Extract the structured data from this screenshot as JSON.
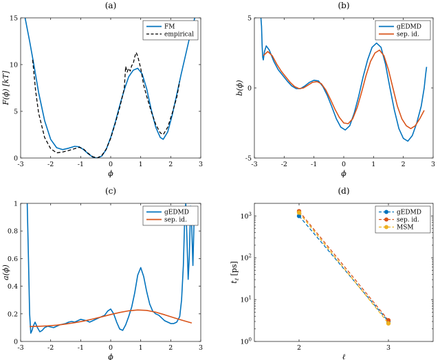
{
  "colors": {
    "blue": "#0072BD",
    "orange": "#D95319",
    "yellow": "#EDB120",
    "black": "#000000"
  },
  "chart_data": [
    {
      "id": "a",
      "type": "line",
      "title": "(a)",
      "xlabel": "ϕ",
      "ylabel": "F(ϕ) [kT]",
      "xlim": [
        -3,
        3
      ],
      "ylim": [
        0,
        15
      ],
      "x_ticks": [
        "-3",
        "-2",
        "-1",
        "0",
        "1",
        "2",
        "3"
      ],
      "y_ticks": [
        "0",
        "5",
        "10",
        "15"
      ],
      "legend_position": "top-right",
      "series": [
        {
          "name": "FM",
          "color": "#0072BD",
          "dash": "solid",
          "x": [
            -2.85,
            -2.7,
            -2.55,
            -2.4,
            -2.2,
            -2.0,
            -1.8,
            -1.6,
            -1.4,
            -1.2,
            -1.05,
            -0.9,
            -0.75,
            -0.6,
            -0.45,
            -0.3,
            -0.15,
            0.0,
            0.15,
            0.3,
            0.45,
            0.6,
            0.75,
            0.9,
            1.05,
            1.2,
            1.35,
            1.5,
            1.65,
            1.75,
            1.9,
            2.05,
            2.2,
            2.35,
            2.5,
            2.65,
            2.8
          ],
          "y": [
            15.0,
            12.5,
            9.8,
            7.0,
            4.0,
            2.0,
            1.1,
            0.9,
            1.05,
            1.25,
            1.2,
            0.9,
            0.45,
            0.1,
            0.0,
            0.2,
            0.9,
            2.2,
            3.8,
            5.6,
            7.3,
            8.7,
            9.4,
            9.6,
            9.0,
            7.4,
            5.2,
            3.3,
            2.2,
            2.0,
            2.8,
            4.6,
            6.8,
            9.0,
            11.1,
            13.2,
            15.0
          ]
        },
        {
          "name": "empirical",
          "color": "#000000",
          "dash": "dashed",
          "x": [
            -2.6,
            -2.5,
            -2.4,
            -2.2,
            -2.0,
            -1.8,
            -1.6,
            -1.4,
            -1.2,
            -1.05,
            -0.9,
            -0.75,
            -0.6,
            -0.45,
            -0.3,
            -0.15,
            0.0,
            0.15,
            0.3,
            0.45,
            0.5,
            0.55,
            0.6,
            0.65,
            0.7,
            0.75,
            0.8,
            0.85,
            0.9,
            1.0,
            1.1,
            1.2,
            1.35,
            1.5,
            1.65,
            1.75,
            1.9,
            2.05,
            2.2,
            2.3
          ],
          "y": [
            10.5,
            7.2,
            4.8,
            2.2,
            1.0,
            0.55,
            0.65,
            0.8,
            1.0,
            1.15,
            0.95,
            0.5,
            0.15,
            0.0,
            0.25,
            0.95,
            2.1,
            3.7,
            5.4,
            7.4,
            9.8,
            9.2,
            9.6,
            9.3,
            9.9,
            10.1,
            10.8,
            11.3,
            10.9,
            9.6,
            7.8,
            6.6,
            5.0,
            3.6,
            2.7,
            2.5,
            3.3,
            4.8,
            6.5,
            8.2
          ]
        }
      ]
    },
    {
      "id": "b",
      "type": "line",
      "title": "(b)",
      "xlabel": "ϕ",
      "ylabel": "b(ϕ)",
      "xlim": [
        -3,
        3
      ],
      "ylim": [
        -5,
        5
      ],
      "x_ticks": [
        "-3",
        "-2",
        "-1",
        "0",
        "1",
        "2",
        "3"
      ],
      "y_ticks": [
        "-5",
        "0",
        "5"
      ],
      "legend_position": "top-right",
      "series": [
        {
          "name": "gEDMD",
          "color": "#0072BD",
          "dash": "solid",
          "x": [
            -2.78,
            -2.76,
            -2.74,
            -2.72,
            -2.7,
            -2.66,
            -2.6,
            -2.5,
            -2.35,
            -2.2,
            -2.05,
            -1.9,
            -1.75,
            -1.6,
            -1.45,
            -1.3,
            -1.15,
            -1.0,
            -0.85,
            -0.7,
            -0.55,
            -0.4,
            -0.25,
            -0.1,
            0.05,
            0.2,
            0.35,
            0.5,
            0.65,
            0.8,
            0.95,
            1.1,
            1.25,
            1.4,
            1.55,
            1.7,
            1.85,
            2.0,
            2.15,
            2.3,
            2.45,
            2.6,
            2.7,
            2.75,
            2.78
          ],
          "y": [
            5.0,
            4.4,
            3.0,
            2.2,
            2.0,
            2.6,
            3.0,
            2.7,
            1.9,
            1.3,
            0.9,
            0.5,
            0.15,
            -0.05,
            -0.05,
            0.15,
            0.4,
            0.55,
            0.5,
            0.1,
            -0.55,
            -1.35,
            -2.2,
            -2.8,
            -3.0,
            -2.7,
            -1.8,
            -0.6,
            0.8,
            2.0,
            2.9,
            3.2,
            2.9,
            1.7,
            0.0,
            -1.6,
            -2.9,
            -3.6,
            -3.8,
            -3.4,
            -2.5,
            -1.3,
            0.0,
            1.0,
            1.5
          ]
        },
        {
          "name": "sep. id.",
          "color": "#D95319",
          "dash": "solid",
          "x": [
            -2.7,
            -2.55,
            -2.4,
            -2.25,
            -2.1,
            -1.95,
            -1.8,
            -1.65,
            -1.5,
            -1.35,
            -1.2,
            -1.05,
            -0.9,
            -0.75,
            -0.6,
            -0.45,
            -0.3,
            -0.15,
            0.0,
            0.15,
            0.3,
            0.45,
            0.6,
            0.75,
            0.9,
            1.05,
            1.2,
            1.35,
            1.5,
            1.65,
            1.8,
            1.95,
            2.1,
            2.25,
            2.4,
            2.55,
            2.7
          ],
          "y": [
            2.3,
            2.6,
            2.3,
            1.7,
            1.2,
            0.8,
            0.4,
            0.1,
            -0.05,
            0.0,
            0.2,
            0.4,
            0.45,
            0.3,
            -0.15,
            -0.8,
            -1.5,
            -2.1,
            -2.5,
            -2.55,
            -2.2,
            -1.4,
            -0.3,
            0.9,
            1.9,
            2.5,
            2.7,
            2.3,
            1.3,
            0.0,
            -1.3,
            -2.2,
            -2.7,
            -2.9,
            -2.7,
            -2.2,
            -1.6
          ]
        }
      ]
    },
    {
      "id": "c",
      "type": "line",
      "title": "(c)",
      "xlabel": "ϕ",
      "ylabel": "a(ϕ)",
      "xlim": [
        -3,
        3
      ],
      "ylim": [
        0,
        1
      ],
      "x_ticks": [
        "-3",
        "-2",
        "-1",
        "0",
        "1",
        "2",
        "3"
      ],
      "y_ticks": [
        "0",
        "0.2",
        "0.4",
        "0.6",
        "0.8",
        "1"
      ],
      "legend_position": "top-right",
      "series": [
        {
          "name": "gEDMD",
          "color": "#0072BD",
          "dash": "solid",
          "x": [
            -2.78,
            -2.74,
            -2.7,
            -2.66,
            -2.62,
            -2.58,
            -2.52,
            -2.44,
            -2.36,
            -2.28,
            -2.2,
            -2.1,
            -2.0,
            -1.9,
            -1.8,
            -1.7,
            -1.6,
            -1.5,
            -1.4,
            -1.3,
            -1.2,
            -1.1,
            -1.0,
            -0.9,
            -0.8,
            -0.7,
            -0.6,
            -0.5,
            -0.4,
            -0.3,
            -0.2,
            -0.1,
            0.0,
            0.1,
            0.2,
            0.3,
            0.4,
            0.5,
            0.6,
            0.7,
            0.8,
            0.9,
            1.0,
            1.1,
            1.2,
            1.3,
            1.4,
            1.5,
            1.6,
            1.7,
            1.8,
            1.9,
            2.0,
            2.1,
            2.2,
            2.3,
            2.36,
            2.42,
            2.46,
            2.5,
            2.54,
            2.58,
            2.62,
            2.66,
            2.7,
            2.74,
            2.78
          ],
          "y": [
            1.0,
            0.6,
            0.2,
            0.06,
            0.08,
            0.11,
            0.14,
            0.1,
            0.07,
            0.08,
            0.1,
            0.11,
            0.105,
            0.1,
            0.11,
            0.12,
            0.125,
            0.13,
            0.14,
            0.145,
            0.14,
            0.15,
            0.16,
            0.155,
            0.15,
            0.14,
            0.15,
            0.16,
            0.17,
            0.18,
            0.19,
            0.22,
            0.235,
            0.2,
            0.14,
            0.09,
            0.08,
            0.12,
            0.18,
            0.25,
            0.35,
            0.48,
            0.535,
            0.47,
            0.36,
            0.27,
            0.22,
            0.2,
            0.19,
            0.17,
            0.15,
            0.14,
            0.13,
            0.13,
            0.14,
            0.18,
            0.3,
            0.55,
            0.85,
            1.0,
            0.75,
            0.45,
            0.62,
            0.98,
            0.82,
            0.55,
            0.9
          ]
        },
        {
          "name": "sep. id.",
          "color": "#D95319",
          "dash": "solid",
          "x": [
            -2.7,
            -2.4,
            -2.1,
            -1.8,
            -1.5,
            -1.2,
            -0.9,
            -0.6,
            -0.3,
            0.0,
            0.3,
            0.6,
            0.9,
            1.2,
            1.5,
            1.8,
            2.1,
            2.4,
            2.7
          ],
          "y": [
            0.108,
            0.11,
            0.113,
            0.118,
            0.126,
            0.136,
            0.148,
            0.162,
            0.178,
            0.195,
            0.21,
            0.222,
            0.228,
            0.225,
            0.212,
            0.193,
            0.172,
            0.152,
            0.134
          ]
        }
      ]
    },
    {
      "id": "d",
      "type": "line",
      "title": "(d)",
      "xlabel": "ℓ",
      "ylabel": "tℓ [ps]",
      "xlim": [
        1.5,
        3.5
      ],
      "ylim": [
        1,
        2000
      ],
      "y_scale": "log",
      "x_ticks": [
        "2",
        "3"
      ],
      "y_ticks": [
        "10^0",
        "10^1",
        "10^2",
        "10^3"
      ],
      "legend_position": "top-right",
      "series": [
        {
          "name": "gEDMD",
          "color": "#0072BD",
          "dash": "dashed",
          "marker": "circle",
          "x": [
            2,
            3
          ],
          "y": [
            1000,
            3.0
          ]
        },
        {
          "name": "sep. id.",
          "color": "#D95319",
          "dash": "dashed",
          "marker": "circle",
          "x": [
            2,
            3
          ],
          "y": [
            1300,
            3.2
          ]
        },
        {
          "name": "MSM",
          "color": "#EDB120",
          "dash": "dashed",
          "marker": "circle",
          "x": [
            2,
            3
          ],
          "y": [
            1200,
            2.7
          ]
        }
      ]
    }
  ]
}
